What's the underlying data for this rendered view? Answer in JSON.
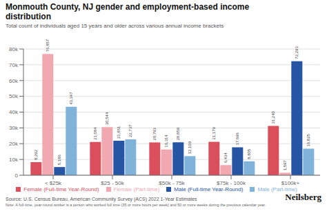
{
  "chart_data": {
    "type": "bar",
    "title": "Monmouth County, NJ gender and employment-based income\ndistribution",
    "subtitle": "Total count of individuals aged 15 years and older across various annual income brackets",
    "annotations": [
      "Source: U.S. Census Bureau, American Community Survey (ACS) 2022 1-Year Estimates",
      "Note: A full-time, year-round worker is a person who worked full time (35 or more hours per week) and 50 or more weeks during the previous calendar year.",
      "Neilsberg"
    ],
    "categories": [
      "< $25k",
      "$25 - 50k",
      "$50k - 75k",
      "$75k - 100k",
      "$100k+"
    ],
    "series": [
      {
        "name": "Female (Full-time Year-Round)",
        "color": "#d94f5c",
        "values": [
          8292,
          21084,
          20793,
          21179,
          31240
        ],
        "value_labels": [
          "8,292",
          "21,084",
          "20,793",
          "21,179",
          "31,240"
        ]
      },
      {
        "name": "Female (Part-time)",
        "color": "#f2a8b0",
        "values": [
          76857,
          30544,
          16314,
          6434,
          1597
        ],
        "value_labels": [
          "76,857",
          "30,544",
          "16,314",
          "6,434",
          "1,597"
        ]
      },
      {
        "name": "Male (Full-time Year-Round)",
        "color": "#2655a3",
        "values": [
          5186,
          21851,
          20859,
          17696,
          72293
        ],
        "value_labels": [
          "5,186",
          "21,851",
          "20,859",
          "17,696",
          "72,293"
        ]
      },
      {
        "name": "Male (Part-time)",
        "color": "#7fb3d9",
        "values": [
          43347,
          22737,
          12109,
          8805,
          16825
        ],
        "value_labels": [
          "43,347",
          "22,737",
          "12,109",
          "8,805",
          "16,825"
        ]
      }
    ],
    "ylim": [
      0,
      80000
    ],
    "yticks": [
      0,
      {
        "value": 10000,
        "label": "10k"
      },
      {
        "value": 20000,
        "label": "20k"
      },
      {
        "value": 30000,
        "label": "30k"
      },
      {
        "value": 40000,
        "label": "40k"
      },
      {
        "value": 50000,
        "label": "50k"
      },
      {
        "value": 60000,
        "label": "60k"
      },
      {
        "value": 70000,
        "label": "70k"
      },
      {
        "value": 80000,
        "label": "80k"
      }
    ],
    "grid": true,
    "data_labels": true,
    "legend": "bottom"
  }
}
